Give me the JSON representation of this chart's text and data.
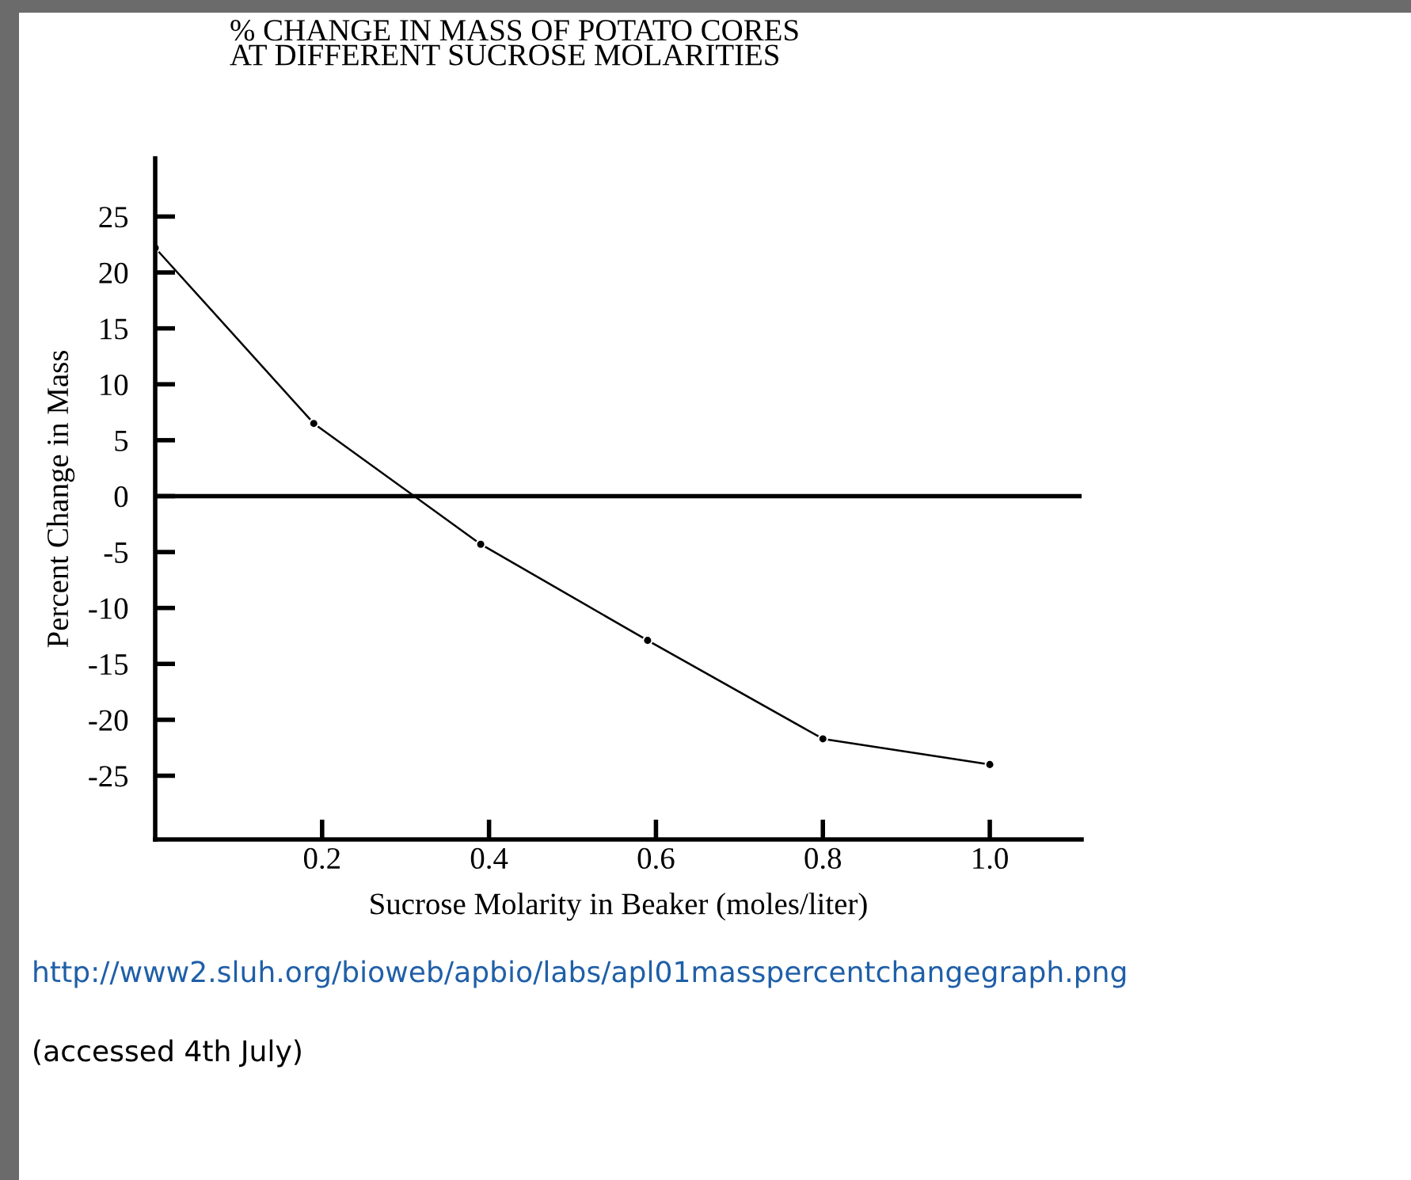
{
  "chart_data": {
    "type": "line",
    "title": "% CHANGE IN MASS OF POTATO CORES\nAT DIFFERENT SUCROSE MOLARITIES",
    "xlabel": "Sucrose Molarity in Beaker (moles/liter)",
    "ylabel": "Percent Change in Mass",
    "x": [
      0,
      0.19,
      0.39,
      0.59,
      0.8,
      1.0
    ],
    "series": [
      {
        "color": "#000000",
        "values": [
          22.2,
          6.5,
          -4.3,
          -12.9,
          -21.7,
          -24.0
        ]
      }
    ],
    "xlim": [
      0,
      1.11
    ],
    "xticks": [
      {
        "value": 0.2,
        "label": "0.2"
      },
      {
        "value": 0.4,
        "label": "0.4"
      },
      {
        "value": 0.6,
        "label": "0.6"
      },
      {
        "value": 0.8,
        "label": "0.8"
      },
      {
        "value": 1.0,
        "label": "1.0"
      }
    ],
    "ylim": [
      -30.7,
      30.2
    ],
    "yticks": [
      25,
      20,
      15,
      10,
      5,
      0,
      -5,
      -10,
      -15,
      -20,
      -25
    ],
    "ref_lines": [
      {
        "axis": "y",
        "value": 0,
        "color": "#000000"
      }
    ],
    "marker": "circle",
    "line_style": "solid",
    "grid": false,
    "legend": false,
    "annotations": [
      "http://www2.sluh.org/bioweb/apbio/labs/apl01masspercentchangegraph.png",
      "(accessed 4th July)"
    ]
  }
}
